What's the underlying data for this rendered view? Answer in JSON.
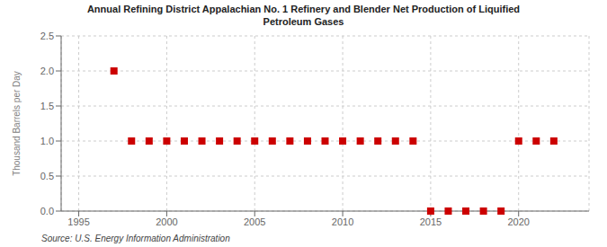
{
  "chart_data": {
    "type": "scatter",
    "title": "Annual Refining District Appalachian No. 1 Refinery and Blender Net Production of Liquified\nPetroleum Gases",
    "ylabel": "Thousand Barrels per Day",
    "annotations": [
      "Source: U.S. Energy Information Administration"
    ],
    "x": [
      1997,
      1998,
      1999,
      2000,
      2001,
      2002,
      2003,
      2004,
      2005,
      2006,
      2007,
      2008,
      2009,
      2010,
      2011,
      2012,
      2013,
      2014,
      2015,
      2016,
      2017,
      2018,
      2019,
      2020,
      2021,
      2022
    ],
    "values": [
      2.0,
      1.0,
      1.0,
      1.0,
      1.0,
      1.0,
      1.0,
      1.0,
      1.0,
      1.0,
      1.0,
      1.0,
      1.0,
      1.0,
      1.0,
      1.0,
      1.0,
      1.0,
      0.0,
      0.0,
      0.0,
      0.0,
      0.0,
      1.0,
      1.0,
      1.0
    ],
    "color": "#cc0000",
    "marker": "square",
    "xlim": [
      1994,
      2024
    ],
    "xticks": [
      1995,
      2000,
      2005,
      2010,
      2015,
      2020
    ],
    "ylim": [
      0.0,
      2.5
    ],
    "yticks": [
      {
        "value": 0.0,
        "label": "0.0"
      },
      0.5,
      {
        "value": 1.0,
        "label": "1.0"
      },
      1.5,
      {
        "value": 2.0,
        "label": "2.0"
      },
      2.5
    ],
    "grid": true
  }
}
